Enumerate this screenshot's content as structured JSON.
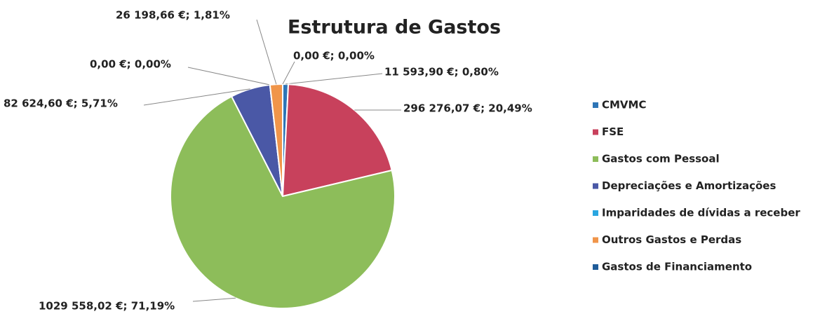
{
  "chart_data": {
    "type": "pie",
    "title": "Estrutura de Gastos",
    "categories": [
      "CMVMC",
      "FSE",
      "Gastos com Pessoal",
      "Depreciações e Amortizações",
      "Imparidades de dívidas a receber",
      "Outros Gastos e Perdas",
      "Gastos de Financiamento"
    ],
    "values": [
      11593.9,
      296276.07,
      1029558.02,
      82624.6,
      0,
      26198.66,
      0
    ],
    "value_labels": [
      "11 593,90 €; 0,80%",
      "296 276,07 €; 20,49%",
      "1029 558,02 €; 71,19%",
      "82 624,60 €; 5,71%",
      "0,00 €; 0,00%",
      "26 198,66 €; 1,81%",
      "0,00 €; 0,00%"
    ],
    "colors": [
      "#2e75b6",
      "#c8415c",
      "#8dbd5a",
      "#4a58a6",
      "#2aa6e0",
      "#f0954a",
      "#1f5c99"
    ],
    "legend": "right"
  }
}
